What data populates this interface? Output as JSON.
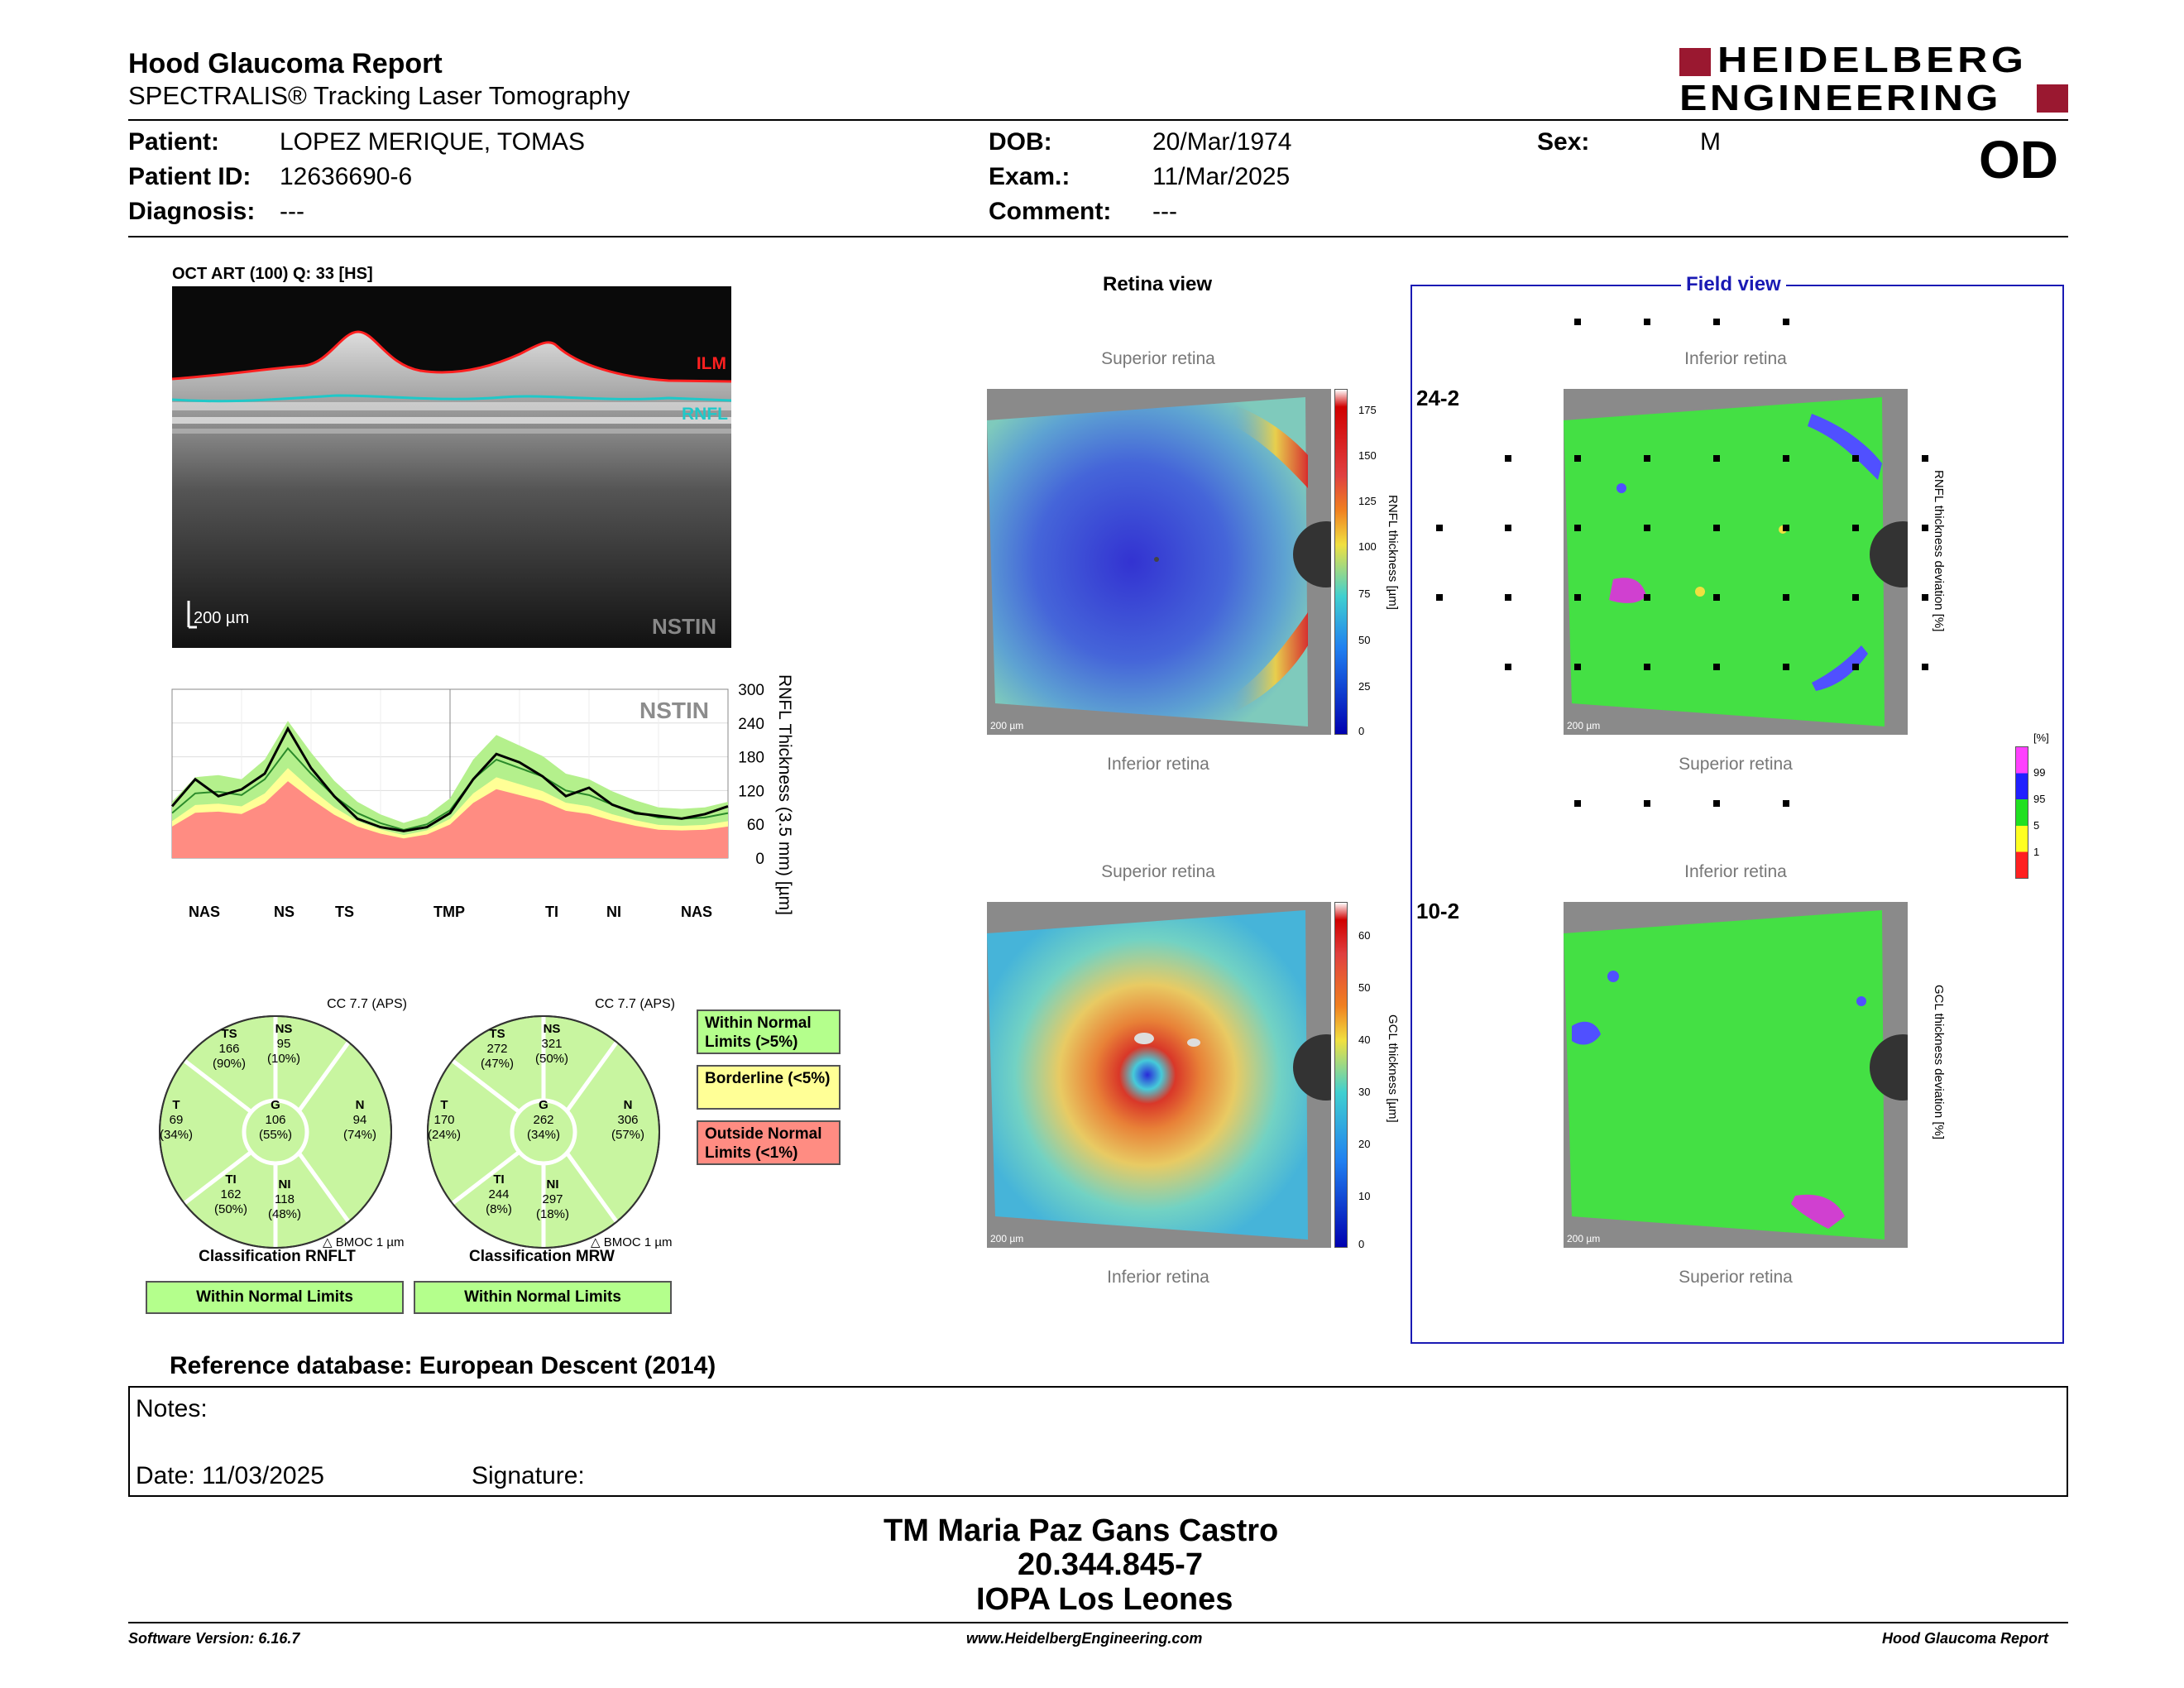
{
  "header": {
    "title": "Hood Glaucoma Report",
    "subtitle": "SPECTRALIS® Tracking Laser Tomography",
    "brand_line1": "HEIDELBERG",
    "brand_line2": "ENGINEERING",
    "eye": "OD"
  },
  "patient": {
    "patient_label": "Patient:",
    "patient_value": "LOPEZ MERIQUE, TOMAS",
    "id_label": "Patient ID:",
    "id_value": "12636690-6",
    "diagnosis_label": "Diagnosis:",
    "diagnosis_value": "---",
    "dob_label": "DOB:",
    "dob_value": "20/Mar/1974",
    "exam_label": "Exam.:",
    "exam_value": "11/Mar/2025",
    "comment_label": "Comment:",
    "comment_value": "---",
    "sex_label": "Sex:",
    "sex_value": "M"
  },
  "oct": {
    "caption": "OCT ART (100) Q: 33 [HS]",
    "ilm": "ILM",
    "rnfl": "RNFL",
    "scale": "200 µm",
    "nstin": "NSTIN"
  },
  "chart_data": {
    "type": "line",
    "title": "NSTIN",
    "ylabel": "RNFL Thickness (3.5 mm) [µm]",
    "ylim": [
      0,
      300
    ],
    "yticks": [
      "300",
      "240",
      "180",
      "120",
      "60",
      "0"
    ],
    "sectors": [
      "NAS",
      "NS",
      "TS",
      "TMP",
      "TI",
      "NI",
      "NAS"
    ],
    "x": [
      0,
      15,
      30,
      45,
      60,
      75,
      90,
      105,
      120,
      135,
      150,
      165,
      180,
      195,
      210,
      225,
      240,
      255,
      270,
      285,
      300,
      315,
      330,
      345,
      360
    ],
    "series": [
      {
        "name": "measured",
        "values": [
          92,
          140,
          110,
          122,
          150,
          230,
          160,
          110,
          70,
          55,
          48,
          55,
          80,
          140,
          185,
          170,
          145,
          110,
          125,
          95,
          80,
          75,
          70,
          78,
          92
        ]
      },
      {
        "name": "normal_mean",
        "values": [
          80,
          115,
          118,
          112,
          140,
          195,
          150,
          110,
          80,
          62,
          50,
          60,
          85,
          140,
          175,
          160,
          145,
          120,
          112,
          95,
          82,
          72,
          70,
          72,
          80
        ]
      }
    ]
  },
  "sector_labels": {
    "nas": "NAS",
    "ns": "NS",
    "ts": "TS",
    "tmp": "TMP",
    "ti": "TI",
    "ni": "NI",
    "nas2": "NAS"
  },
  "pie_rnflt": {
    "cc": "CC 7.7 (APS)",
    "TS": {
      "l": "TS",
      "v": "166",
      "p": "(90%)"
    },
    "NS": {
      "l": "NS",
      "v": "95",
      "p": "(10%)"
    },
    "T": {
      "l": "T",
      "v": "69",
      "p": "(34%)"
    },
    "G": {
      "l": "G",
      "v": "106",
      "p": "(55%)"
    },
    "N": {
      "l": "N",
      "v": "94",
      "p": "(74%)"
    },
    "TI": {
      "l": "TI",
      "v": "162",
      "p": "(50%)"
    },
    "NI": {
      "l": "NI",
      "v": "118",
      "p": "(48%)"
    },
    "bmoc": "BMOC 1 µm",
    "classification": "Classification RNFLT",
    "result": "Within Normal Limits"
  },
  "pie_mrw": {
    "cc": "CC 7.7 (APS)",
    "TS": {
      "l": "TS",
      "v": "272",
      "p": "(47%)"
    },
    "NS": {
      "l": "NS",
      "v": "321",
      "p": "(50%)"
    },
    "T": {
      "l": "T",
      "v": "170",
      "p": "(24%)"
    },
    "G": {
      "l": "G",
      "v": "262",
      "p": "(34%)"
    },
    "N": {
      "l": "N",
      "v": "306",
      "p": "(57%)"
    },
    "TI": {
      "l": "TI",
      "v": "244",
      "p": "(8%)"
    },
    "NI": {
      "l": "NI",
      "v": "297",
      "p": "(18%)"
    },
    "bmoc": "BMOC 1 µm",
    "classification": "Classification MRW",
    "result": "Within Normal Limits"
  },
  "legend": {
    "wnl": "Within Normal Limits (>5%)",
    "bl": "Borderline (<5%)",
    "onl": "Outside Normal Limits (<1%)",
    "colors": {
      "wnl": "#b4ff8c",
      "bl": "#ffff96",
      "onl": "#ff8c82"
    }
  },
  "retina": {
    "title": "Retina view",
    "superior1": "Superior retina",
    "inferior1": "Inferior retina",
    "superior2": "Superior retina",
    "inferior2": "Inferior retina",
    "scale": "200 µm",
    "rnfl_axis": "RNFL thickness [µm]",
    "rnfl_ticks": [
      "175",
      "150",
      "125",
      "100",
      "75",
      "50",
      "25",
      "0"
    ],
    "gcl_axis": "GCL thickness [µm]",
    "gcl_ticks": [
      "60",
      "50",
      "40",
      "30",
      "20",
      "10",
      "0"
    ]
  },
  "field": {
    "title": "Field view",
    "inferior1": "Inferior retina",
    "superior1": "Superior retina",
    "inferior2": "Inferior retina",
    "superior2": "Superior retina",
    "p242": "24-2",
    "p102": "10-2",
    "rnfl_dev": "RNFL thickness deviation [%]",
    "gcl_dev": "GCL thickness deviation [%]",
    "pct": "[%]",
    "dev_ticks": [
      "99",
      "95",
      "5",
      "1"
    ]
  },
  "reference": "Reference database: European Descent (2014)",
  "notes": {
    "notes_label": "Notes:",
    "date_label": "Date: 11/03/2025",
    "signature_label": "Signature:"
  },
  "signature": {
    "name": "TM Maria Paz Gans Castro",
    "rut": "20.344.845-7",
    "place": "IOPA Los Leones"
  },
  "footer": {
    "version": "Software Version: 6.16.7",
    "website": "www.HeidelbergEngineering.com",
    "report": "Hood Glaucoma Report"
  }
}
